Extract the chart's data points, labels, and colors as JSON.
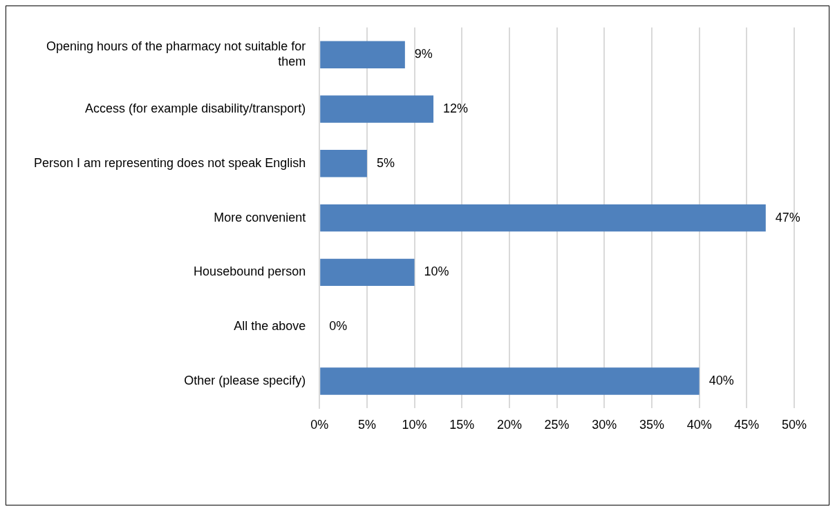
{
  "chart_data": {
    "type": "bar",
    "orientation": "horizontal",
    "categories": [
      "Opening hours of the pharmacy not suitable for them",
      "Access (for example disability/transport)",
      "Person I am representing does not speak English",
      "More convenient",
      "Housebound person",
      "All the above",
      "Other (please specify)"
    ],
    "values": [
      9,
      12,
      5,
      47,
      10,
      0,
      40
    ],
    "value_labels": [
      "9%",
      "12%",
      "5%",
      "47%",
      "10%",
      "0%",
      "40%"
    ],
    "color": "#4f81bd",
    "xlim": [
      0,
      50
    ],
    "xticks": [
      {
        "value": 0,
        "label": "0%"
      },
      {
        "value": 5,
        "label": "5%"
      },
      {
        "value": 10,
        "label": "10%"
      },
      {
        "value": 15,
        "label": "15%"
      },
      {
        "value": 20,
        "label": "20%"
      },
      {
        "value": 25,
        "label": "25%"
      },
      {
        "value": 30,
        "label": "30%"
      },
      {
        "value": 35,
        "label": "35%"
      },
      {
        "value": 40,
        "label": "40%"
      },
      {
        "value": 45,
        "label": "45%"
      },
      {
        "value": 50,
        "label": "50%"
      }
    ],
    "grid": "x",
    "legend": false
  }
}
